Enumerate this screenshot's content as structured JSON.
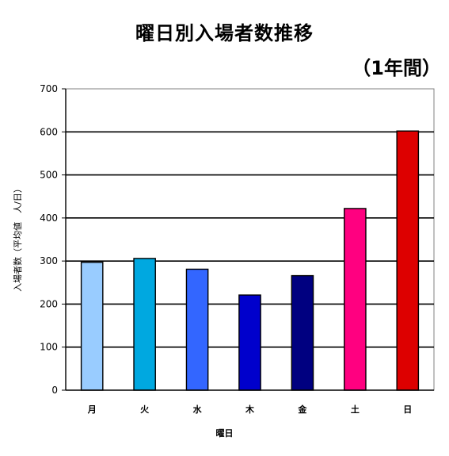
{
  "chart_data": {
    "type": "bar",
    "title": "曜日別入場者数推移",
    "subtitle": "（1年間）",
    "xlabel": "曜日",
    "ylabel": "入場者数（平均値　人/日）",
    "categories": [
      "月",
      "火",
      "水",
      "木",
      "金",
      "土",
      "日"
    ],
    "values": [
      297,
      306,
      281,
      221,
      266,
      422,
      602
    ],
    "colors": [
      "#99ccff",
      "#00a8e0",
      "#3366ff",
      "#0000cc",
      "#000080",
      "#ff0080",
      "#dd0000"
    ],
    "ylim": [
      0,
      700
    ],
    "yticks": [
      0,
      100,
      200,
      300,
      400,
      500,
      600,
      700
    ],
    "grid": true,
    "legend": "none"
  }
}
